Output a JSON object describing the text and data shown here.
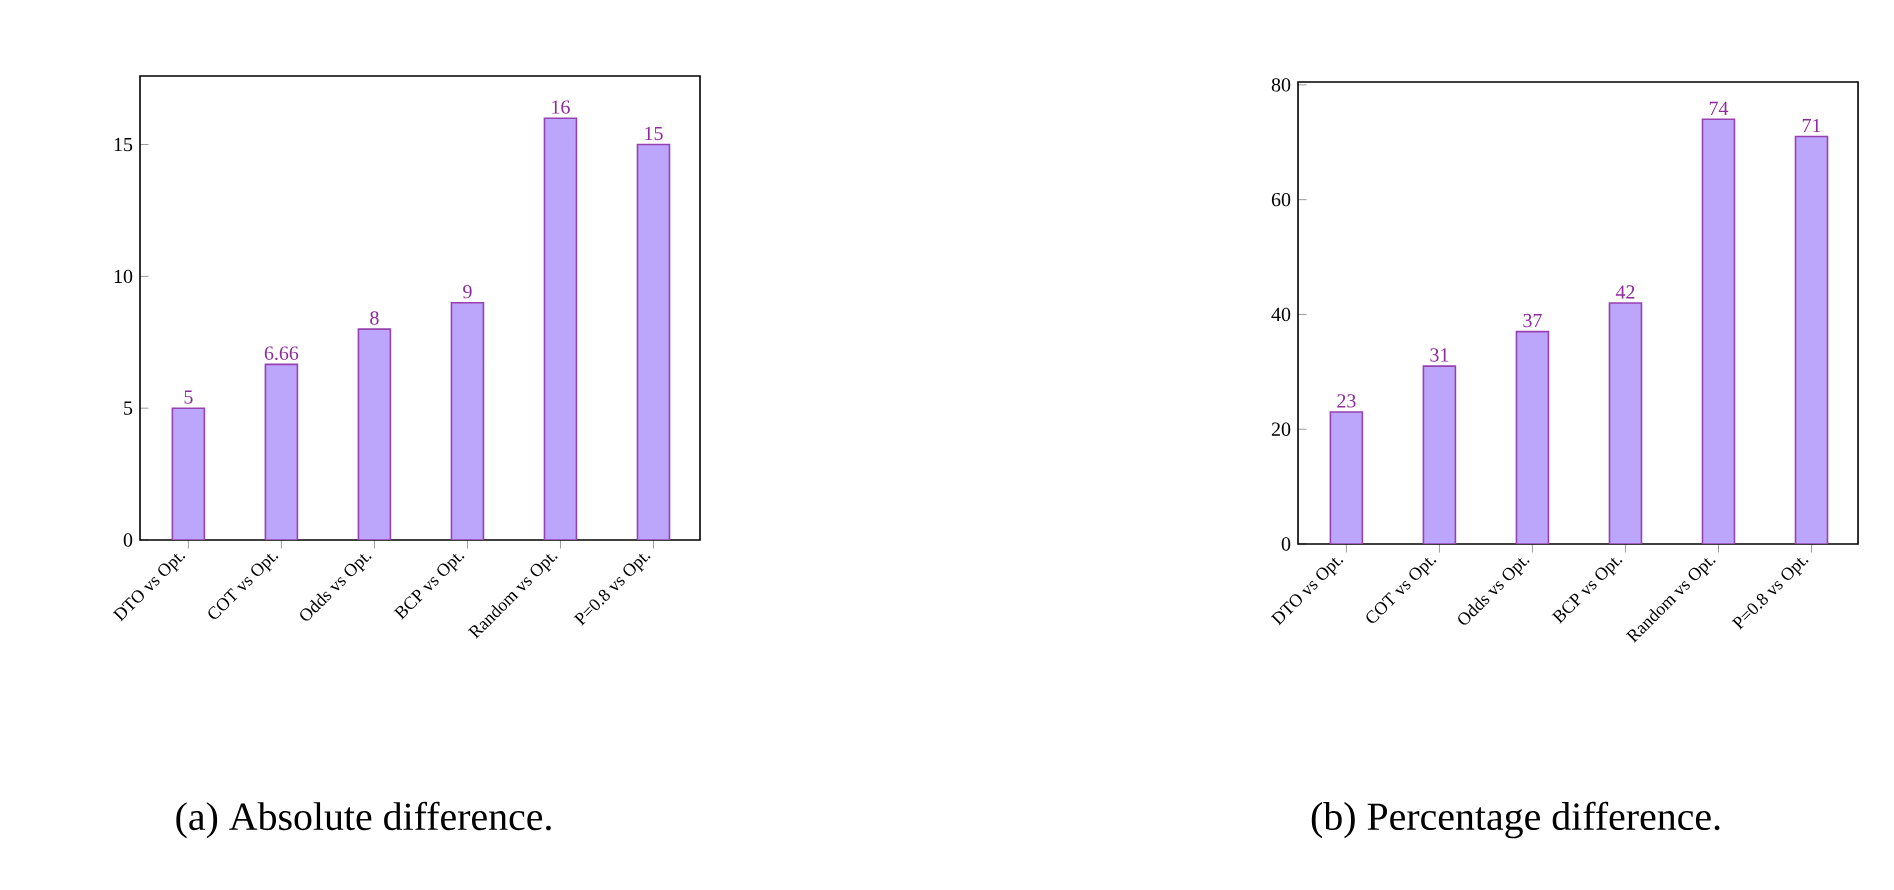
{
  "chart_data": [
    {
      "type": "bar",
      "categories": [
        "DTO vs Opt.",
        "COT vs Opt.",
        "Odds vs Opt.",
        "BCP vs Opt.",
        "Random vs Opt.",
        "P=0.8 vs Opt."
      ],
      "values": [
        5,
        6.66,
        8,
        9,
        16,
        15
      ],
      "color": "#bba6fb",
      "ylim": [
        0,
        17.6
      ],
      "yticks": [
        0,
        5,
        10,
        15
      ],
      "data_labels": true,
      "grid": false,
      "annotations": [
        "(a) Absolute difference."
      ]
    },
    {
      "type": "bar",
      "categories": [
        "DTO vs Opt.",
        "COT vs Opt.",
        "Odds vs Opt.",
        "BCP vs Opt.",
        "Random vs Opt.",
        "P=0.8 vs Opt."
      ],
      "values": [
        23,
        31,
        37,
        42,
        74,
        71
      ],
      "color": "#bba6fb",
      "ylim": [
        0,
        80.5
      ],
      "yticks": [
        0,
        20,
        40,
        60,
        80
      ],
      "data_labels": true,
      "grid": false,
      "annotations": [
        "(b) Percentage difference."
      ]
    }
  ]
}
